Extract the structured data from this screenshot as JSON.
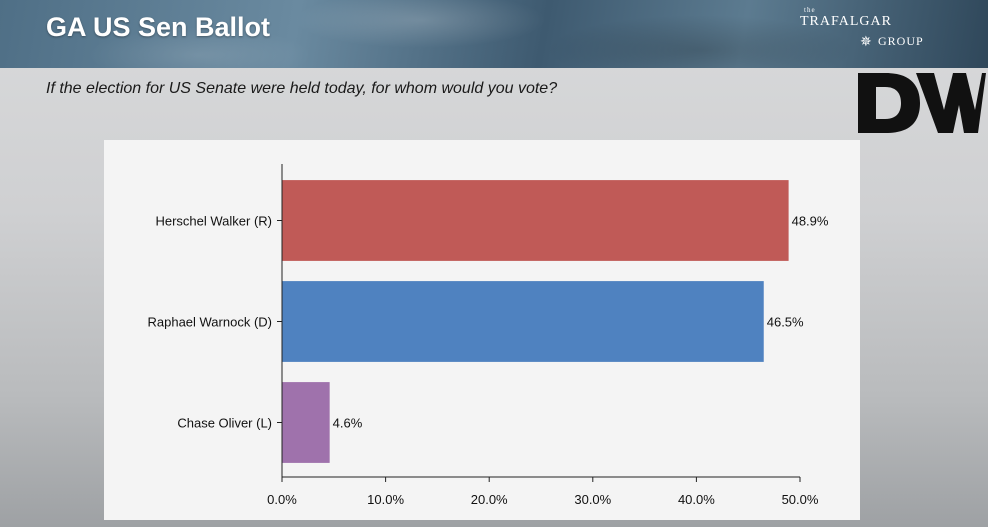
{
  "header": {
    "title": "GA US Sen Ballot",
    "brand_the": "the",
    "brand_line1": "TRAFALGAR",
    "brand_line2": "GROUP",
    "dw_logo_text": "DW"
  },
  "question": "If the election for US Senate were held today, for whom would you vote?",
  "colors": {
    "republican": "#c05a57",
    "democrat": "#4f82c0",
    "libertarian": "#9f72ac"
  },
  "chart_data": {
    "type": "bar",
    "orientation": "horizontal",
    "title": "",
    "xlabel": "",
    "ylabel": "",
    "categories": [
      "Herschel Walker (R)",
      "Raphael Warnock (D)",
      "Chase Oliver (L)"
    ],
    "values": [
      48.9,
      46.5,
      4.6
    ],
    "value_labels": [
      "48.9%",
      "46.5%",
      "4.6%"
    ],
    "bar_colors": [
      "#c05a57",
      "#4f82c0",
      "#9f72ac"
    ],
    "xlim": [
      0,
      50
    ],
    "xticks": [
      0,
      10,
      20,
      30,
      40,
      50
    ],
    "xtick_labels": [
      "0.0%",
      "10.0%",
      "20.0%",
      "30.0%",
      "40.0%",
      "50.0%"
    ],
    "grid": false,
    "legend": "none"
  }
}
